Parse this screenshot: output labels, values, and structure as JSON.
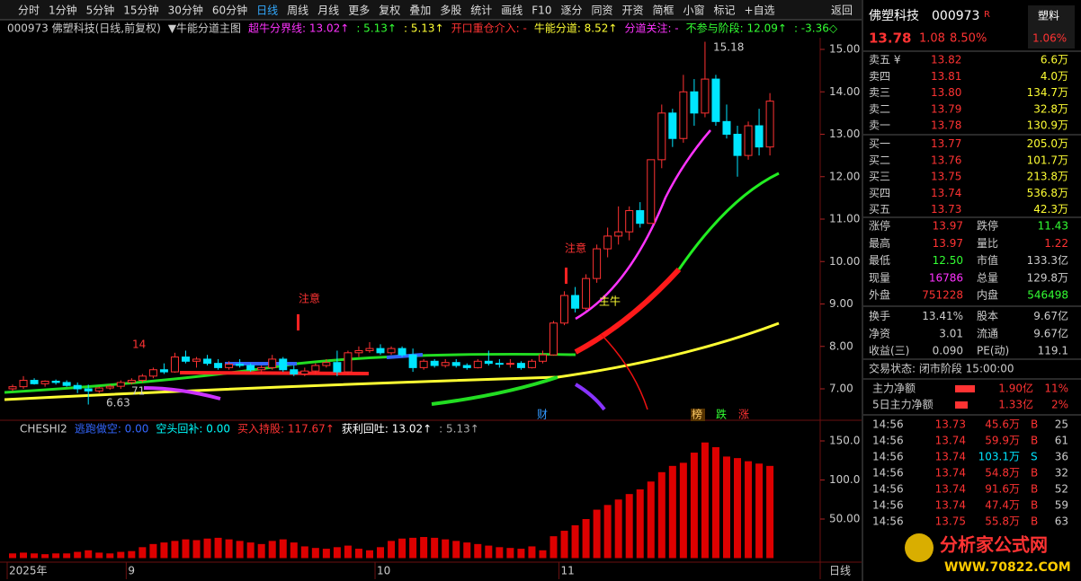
{
  "toolbar": [
    "分时",
    "1分钟",
    "5分钟",
    "15分钟",
    "30分钟",
    "60分钟",
    "日线",
    "周线",
    "月线",
    "更多",
    "复权",
    "叠加",
    "多股",
    "统计",
    "画线",
    "F10",
    "逐分",
    "同资",
    "开资",
    "简框",
    "小窗",
    "标记",
    "+自选",
    "返回"
  ],
  "chart_header": [
    "000973 佛塑科技(日线,前复权)",
    "▼牛能分道主图",
    "超牛分界线: 13.02↑",
    ": 5.13↑",
    ": 5.13↑",
    "开口重仓介入: -",
    "牛能分道: 8.52↑",
    "分道关注: -",
    "不参与阶段: 12.09↑",
    ": -3.36◇"
  ],
  "annotations": {
    "high": "15.18",
    "low": "6.63",
    "note1": "注意",
    "note2": "注意",
    "n14": "14",
    "n71": "71",
    "bull": "主牛",
    "cai": "财",
    "bang": "榜",
    "die": "跌",
    "zhang": "涨"
  },
  "chart": {
    "type": "candlestick",
    "yticks": [
      {
        "value": 7,
        "label": "7.00"
      },
      {
        "value": 8,
        "label": "8.00"
      },
      {
        "value": 9,
        "label": "9.00"
      },
      {
        "value": 10,
        "label": "10.00"
      },
      {
        "value": 11,
        "label": "11.00"
      },
      {
        "value": 12,
        "label": "12.00"
      },
      {
        "value": 13,
        "label": "13.00"
      },
      {
        "value": 14,
        "label": "14.00"
      },
      {
        "value": 15,
        "label": "15.00"
      }
    ],
    "candles": [
      [
        7.0,
        7.1,
        6.95,
        7.05
      ],
      [
        7.05,
        7.3,
        7.0,
        7.2
      ],
      [
        7.2,
        7.25,
        7.1,
        7.12
      ],
      [
        7.12,
        7.2,
        7.05,
        7.18
      ],
      [
        7.18,
        7.22,
        7.1,
        7.15
      ],
      [
        7.15,
        7.2,
        7.05,
        7.08
      ],
      [
        7.08,
        7.15,
        6.9,
        7.0
      ],
      [
        7.0,
        7.1,
        6.63,
        6.95
      ],
      [
        6.95,
        7.05,
        6.9,
        7.02
      ],
      [
        7.02,
        7.1,
        6.98,
        7.06
      ],
      [
        7.06,
        7.2,
        7.0,
        7.15
      ],
      [
        7.15,
        7.25,
        7.1,
        7.2
      ],
      [
        7.2,
        7.35,
        7.15,
        7.3
      ],
      [
        7.3,
        7.5,
        7.25,
        7.45
      ],
      [
        7.45,
        7.6,
        7.35,
        7.4
      ],
      [
        7.4,
        7.85,
        7.38,
        7.75
      ],
      [
        7.75,
        7.9,
        7.6,
        7.65
      ],
      [
        7.65,
        7.75,
        7.5,
        7.7
      ],
      [
        7.7,
        7.8,
        7.55,
        7.6
      ],
      [
        7.6,
        7.7,
        7.45,
        7.5
      ],
      [
        7.5,
        7.65,
        7.45,
        7.58
      ],
      [
        7.58,
        7.7,
        7.5,
        7.55
      ],
      [
        7.55,
        7.6,
        7.4,
        7.45
      ],
      [
        7.45,
        7.55,
        7.35,
        7.5
      ],
      [
        7.5,
        7.8,
        7.45,
        7.7
      ],
      [
        7.7,
        7.75,
        7.4,
        7.45
      ],
      [
        7.45,
        7.55,
        7.3,
        7.35
      ],
      [
        7.35,
        7.5,
        7.3,
        7.42
      ],
      [
        7.42,
        7.6,
        7.35,
        7.55
      ],
      [
        7.55,
        7.7,
        7.5,
        7.62
      ],
      [
        7.62,
        7.9,
        7.3,
        7.4
      ],
      [
        7.4,
        7.9,
        7.35,
        7.85
      ],
      [
        7.85,
        8.0,
        7.75,
        7.9
      ],
      [
        7.9,
        8.1,
        7.85,
        7.95
      ],
      [
        7.95,
        8.05,
        7.8,
        7.85
      ],
      [
        7.85,
        8.0,
        7.8,
        7.95
      ],
      [
        7.95,
        8.0,
        7.75,
        7.8
      ],
      [
        7.8,
        7.95,
        7.4,
        7.5
      ],
      [
        7.5,
        7.7,
        7.45,
        7.65
      ],
      [
        7.65,
        7.7,
        7.5,
        7.55
      ],
      [
        7.55,
        7.7,
        7.5,
        7.62
      ],
      [
        7.62,
        7.7,
        7.5,
        7.55
      ],
      [
        7.55,
        7.6,
        7.45,
        7.5
      ],
      [
        7.5,
        7.7,
        7.48,
        7.65
      ],
      [
        7.65,
        7.9,
        7.55,
        7.6
      ],
      [
        7.6,
        7.7,
        7.5,
        7.58
      ],
      [
        7.58,
        7.7,
        7.5,
        7.6
      ],
      [
        7.6,
        7.65,
        7.45,
        7.5
      ],
      [
        7.5,
        7.7,
        7.48,
        7.65
      ],
      [
        7.65,
        7.9,
        7.6,
        7.8
      ],
      [
        7.8,
        8.6,
        7.78,
        8.55
      ],
      [
        8.55,
        9.3,
        8.5,
        9.2
      ],
      [
        9.2,
        9.4,
        8.8,
        8.9
      ],
      [
        8.9,
        9.7,
        8.85,
        9.6
      ],
      [
        9.6,
        10.4,
        9.5,
        10.3
      ],
      [
        10.3,
        10.8,
        10.1,
        10.6
      ],
      [
        10.6,
        11.3,
        10.4,
        10.7
      ],
      [
        10.7,
        11.3,
        10.5,
        11.2
      ],
      [
        11.2,
        11.4,
        10.8,
        10.9
      ],
      [
        10.9,
        12.4,
        10.9,
        12.4
      ],
      [
        12.4,
        13.7,
        12.2,
        13.5
      ],
      [
        13.5,
        13.6,
        12.7,
        12.9
      ],
      [
        12.9,
        14.4,
        12.8,
        14.0
      ],
      [
        14.0,
        14.3,
        13.2,
        13.5
      ],
      [
        13.5,
        15.18,
        13.4,
        14.3
      ],
      [
        14.3,
        14.4,
        13.2,
        13.3
      ],
      [
        13.3,
        13.7,
        12.9,
        13.0
      ],
      [
        13.0,
        13.2,
        12.0,
        12.5
      ],
      [
        12.5,
        13.3,
        12.4,
        13.2
      ],
      [
        13.2,
        13.6,
        12.5,
        12.7
      ],
      [
        12.7,
        13.97,
        12.5,
        13.78
      ]
    ],
    "dates": [
      "2025年",
      null,
      null,
      null,
      null,
      null,
      null,
      null,
      null,
      null,
      null,
      "9",
      null,
      null,
      null,
      null,
      null,
      null,
      null,
      null,
      null,
      null,
      null,
      null,
      null,
      null,
      null,
      null,
      null,
      null,
      null,
      null,
      null,
      null,
      "10",
      null,
      null,
      null,
      null,
      null,
      null,
      null,
      null,
      null,
      null,
      null,
      null,
      null,
      null,
      null,
      null,
      "11",
      null,
      null,
      null,
      null,
      null,
      null,
      null,
      null,
      null,
      null,
      null,
      null,
      null,
      null,
      null,
      null,
      null,
      null,
      null
    ],
    "period": "日线",
    "indicator_header": [
      "CHESHI2",
      "逃跑做空: 0.00",
      "空头回补: 0.00",
      "买入持股: 117.67↑",
      "获利回吐: 13.02↑",
      ": 5.13↑"
    ],
    "volume": [
      6,
      7,
      6,
      5,
      6,
      6,
      8,
      10,
      7,
      6,
      8,
      9,
      14,
      18,
      20,
      22,
      24,
      23,
      25,
      26,
      24,
      22,
      20,
      18,
      22,
      24,
      20,
      15,
      13,
      12,
      14,
      16,
      12,
      10,
      14,
      22,
      25,
      26,
      27,
      26,
      24,
      22,
      20,
      18,
      16,
      14,
      13,
      12,
      15,
      10,
      28,
      35,
      42,
      50,
      62,
      68,
      75,
      82,
      88,
      98,
      110,
      118,
      122,
      135,
      148,
      142,
      130,
      128,
      124,
      121,
      118
    ],
    "vticks": [
      {
        "value": 50,
        "label": "50.00"
      },
      {
        "value": 100,
        "label": "100.0"
      },
      {
        "value": 150,
        "label": "150.0"
      }
    ]
  },
  "quote": {
    "name": "佛塑科技",
    "code": "000973",
    "flag": "R",
    "sector": "塑料",
    "price": "13.78",
    "change": "1.08",
    "pct": "8.50%",
    "sector_pct": "1.06%",
    "book": [
      [
        "卖五 ¥",
        "13.82",
        "6.6万"
      ],
      [
        "卖四",
        "13.81",
        "4.0万"
      ],
      [
        "卖三",
        "13.80",
        "134.7万"
      ],
      [
        "卖二",
        "13.79",
        "32.8万"
      ],
      [
        "卖一",
        "13.78",
        "130.9万"
      ],
      [
        "买一",
        "13.77",
        "205.0万"
      ],
      [
        "买二",
        "13.76",
        "101.7万"
      ],
      [
        "买三",
        "13.75",
        "213.8万"
      ],
      [
        "买四",
        "13.74",
        "536.8万"
      ],
      [
        "买五",
        "13.73",
        "42.3万"
      ]
    ],
    "stats": [
      [
        "涨停",
        "13.97",
        "跌停",
        "11.43"
      ],
      [
        "最高",
        "13.97",
        "量比",
        "1.22"
      ],
      [
        "最低",
        "12.50",
        "市值",
        "133.3亿"
      ],
      [
        "现量",
        "16786",
        "总量",
        "129.8万"
      ],
      [
        "外盘",
        "751228",
        "内盘",
        "546498"
      ],
      [
        "换手",
        "13.41%",
        "股本",
        "9.67亿"
      ],
      [
        "净资",
        "3.01",
        "流通",
        "9.67亿"
      ],
      [
        "收益(三)",
        "0.090",
        "PE(动)",
        "119.1"
      ]
    ],
    "status": "交易状态: 闭市阶段 15:00:00",
    "flows": [
      [
        "主力净额",
        "1.90亿",
        "11%"
      ],
      [
        "5日主力净额",
        "1.33亿",
        "2%"
      ]
    ],
    "ticks": [
      [
        "14:56",
        "13.73",
        "45.6万",
        "B",
        "25"
      ],
      [
        "14:56",
        "13.74",
        "59.9万",
        "B",
        "61"
      ],
      [
        "14:56",
        "13.74",
        "103.1万",
        "S",
        "36"
      ],
      [
        "14:56",
        "13.74",
        "54.8万",
        "B",
        "32"
      ],
      [
        "14:56",
        "13.74",
        "91.6万",
        "B",
        "52"
      ],
      [
        "14:56",
        "13.74",
        "47.4万",
        "B",
        "59"
      ],
      [
        "14:56",
        "13.75",
        "55.8万",
        "B",
        "63"
      ]
    ]
  },
  "watermark": {
    "title": "分析家公式网",
    "url": "WWW.70822.COM"
  }
}
